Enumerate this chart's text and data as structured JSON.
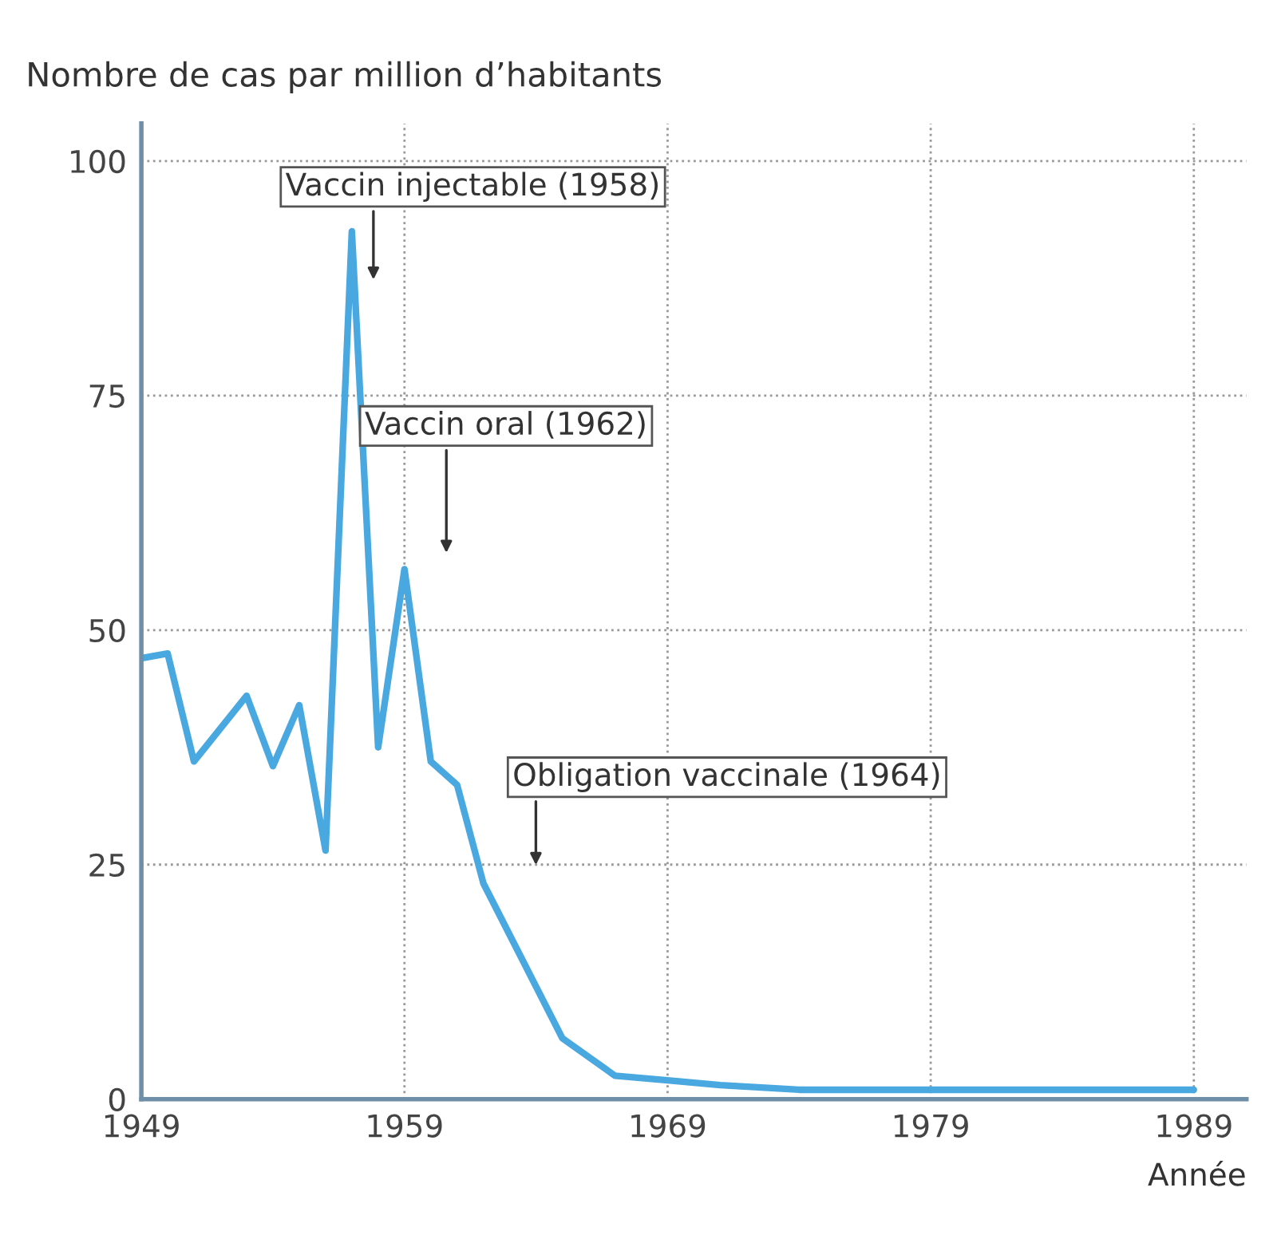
{
  "chart_data": {
    "type": "line",
    "xlabel": "Année",
    "ylabel": "Nombre de cas par million d’habitants",
    "x": [
      1949,
      1950,
      1951,
      1953,
      1954,
      1955,
      1956,
      1957,
      1958,
      1959,
      1960,
      1961,
      1962,
      1965,
      1967,
      1969,
      1971,
      1974,
      1989
    ],
    "series": [
      {
        "color": "#4aa8e0",
        "values": [
          47,
          47.5,
          36,
          43,
          35.5,
          42,
          26.5,
          92.5,
          37.5,
          56.5,
          36,
          33.5,
          23,
          6.5,
          2.5,
          2,
          1.5,
          1,
          1
        ]
      }
    ],
    "xlim": [
      1949,
      1991
    ],
    "ylim": [
      0,
      104
    ],
    "xticks": [
      1949,
      1959,
      1969,
      1979,
      1989
    ],
    "yticks": [
      0,
      25,
      50,
      75,
      100
    ],
    "grid": true,
    "marker": "none",
    "line_style": "solid",
    "annotations": [
      "Vaccin injectable (1958)",
      "Vaccin oral (1962)",
      "Obligation vaccinale (1964)"
    ]
  }
}
